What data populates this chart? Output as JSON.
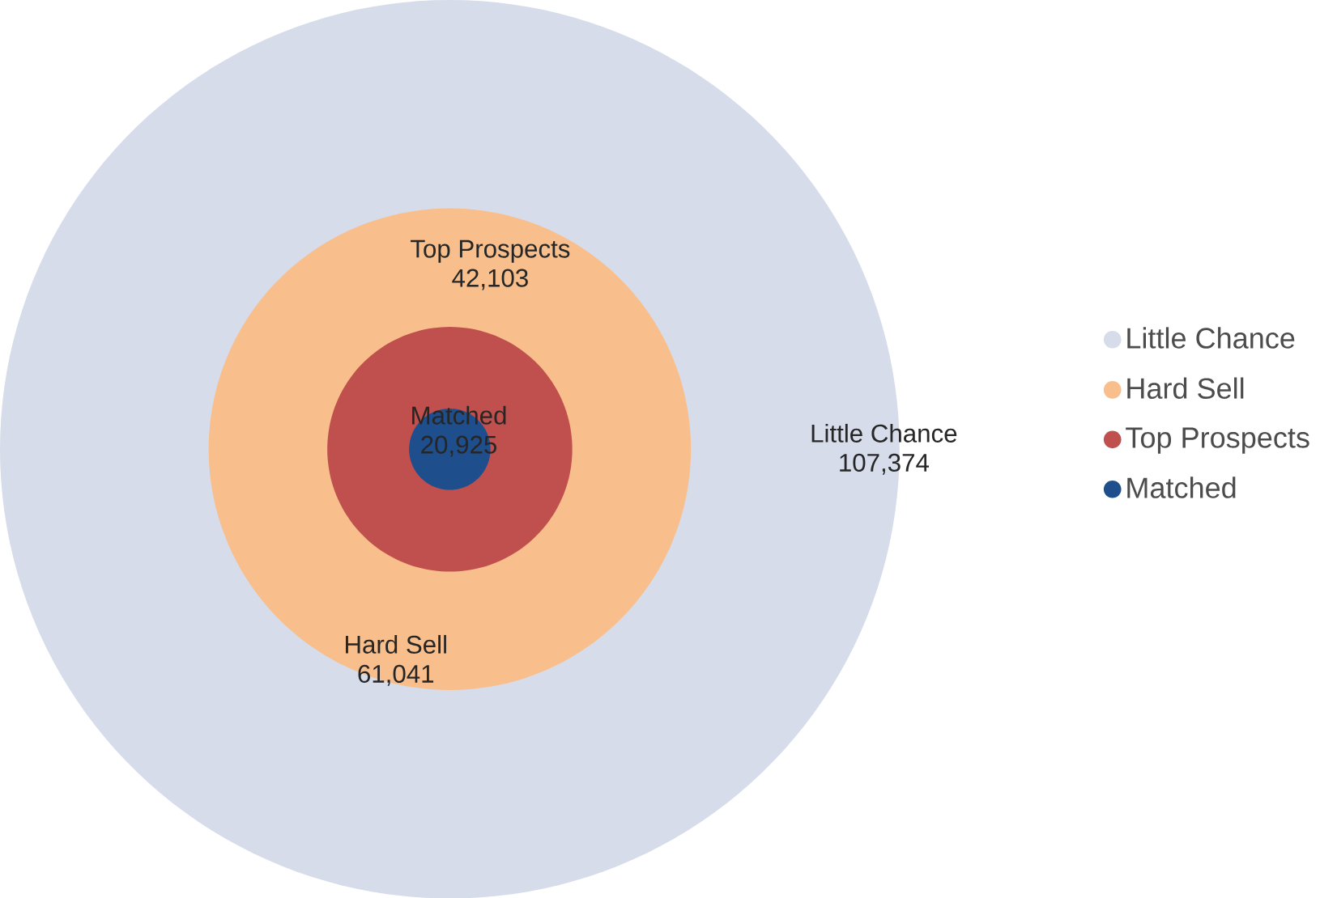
{
  "chart_data": {
    "type": "other",
    "series": [
      {
        "name": "Little Chance",
        "color": "#d6dcea",
        "values": [
          107374
        ],
        "value_labels": [
          "107,374"
        ]
      },
      {
        "name": "Hard Sell",
        "color": "#f8bf8c",
        "values": [
          61041
        ],
        "value_labels": [
          "61,041"
        ]
      },
      {
        "name": "Top Prospects",
        "color": "#c0504d",
        "values": [
          42103
        ],
        "value_labels": [
          "42,103"
        ]
      },
      {
        "name": "Matched",
        "color": "#1f4e8c",
        "values": [
          20925
        ],
        "value_labels": [
          "20,925"
        ]
      }
    ],
    "legend": "right"
  }
}
